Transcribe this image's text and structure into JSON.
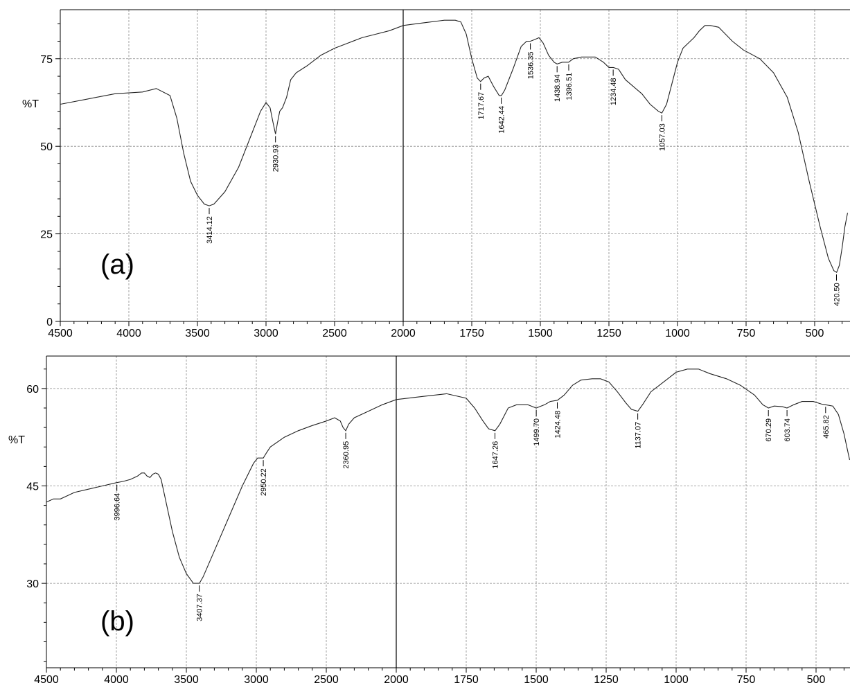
{
  "chart_data": [
    {
      "type": "line",
      "panel_label": "(a)",
      "ylabel": "%T",
      "xlim": [
        4500,
        400
      ],
      "ylim": [
        0,
        89
      ],
      "x_ticks": [
        4500,
        4000,
        3500,
        3000,
        2500,
        2000,
        1750,
        1500,
        1250,
        1000,
        750,
        500
      ],
      "y_ticks": [
        0,
        25,
        50,
        75
      ],
      "grid": true,
      "scale_break_at": 2000,
      "series": [
        {
          "points": [
            [
              4500,
              62
            ],
            [
              4300,
              63.5
            ],
            [
              4100,
              65
            ],
            [
              3900,
              65.5
            ],
            [
              3800,
              66.5
            ],
            [
              3700,
              64.5
            ],
            [
              3650,
              58
            ],
            [
              3600,
              48
            ],
            [
              3550,
              40
            ],
            [
              3500,
              36
            ],
            [
              3450,
              33.5
            ],
            [
              3414,
              33
            ],
            [
              3380,
              33.5
            ],
            [
              3300,
              37
            ],
            [
              3200,
              44
            ],
            [
              3100,
              54
            ],
            [
              3040,
              60
            ],
            [
              3000,
              62.5
            ],
            [
              2970,
              61
            ],
            [
              2950,
              57
            ],
            [
              2931,
              53.5
            ],
            [
              2915,
              57
            ],
            [
              2900,
              60
            ],
            [
              2880,
              61
            ],
            [
              2850,
              64
            ],
            [
              2820,
              69
            ],
            [
              2780,
              71
            ],
            [
              2700,
              73
            ],
            [
              2600,
              76
            ],
            [
              2500,
              78
            ],
            [
              2400,
              79.5
            ],
            [
              2300,
              81
            ],
            [
              2200,
              82
            ],
            [
              2100,
              83
            ],
            [
              2000,
              84.5
            ],
            [
              1950,
              85
            ],
            [
              1900,
              85.5
            ],
            [
              1850,
              86
            ],
            [
              1810,
              86
            ],
            [
              1790,
              85.5
            ],
            [
              1770,
              82
            ],
            [
              1750,
              75
            ],
            [
              1730,
              69.5
            ],
            [
              1718,
              68.5
            ],
            [
              1705,
              69.5
            ],
            [
              1690,
              70
            ],
            [
              1670,
              67
            ],
            [
              1650,
              64.5
            ],
            [
              1642,
              64.5
            ],
            [
              1630,
              66
            ],
            [
              1600,
              72
            ],
            [
              1570,
              78.5
            ],
            [
              1550,
              80
            ],
            [
              1536,
              80
            ],
            [
              1520,
              80.5
            ],
            [
              1505,
              81
            ],
            [
              1490,
              79.5
            ],
            [
              1470,
              76
            ],
            [
              1450,
              74
            ],
            [
              1439,
              73.5
            ],
            [
              1420,
              74
            ],
            [
              1397,
              74
            ],
            [
              1380,
              75
            ],
            [
              1350,
              75.5
            ],
            [
              1300,
              75.5
            ],
            [
              1270,
              74
            ],
            [
              1250,
              72.5
            ],
            [
              1234,
              72.5
            ],
            [
              1215,
              72
            ],
            [
              1190,
              69
            ],
            [
              1160,
              67
            ],
            [
              1130,
              65
            ],
            [
              1100,
              62
            ],
            [
              1070,
              60
            ],
            [
              1057,
              59.5
            ],
            [
              1040,
              62
            ],
            [
              1020,
              68
            ],
            [
              1000,
              74
            ],
            [
              980,
              78
            ],
            [
              960,
              79.5
            ],
            [
              940,
              81
            ],
            [
              920,
              83
            ],
            [
              900,
              84.5
            ],
            [
              880,
              84.5
            ],
            [
              850,
              84
            ],
            [
              800,
              80
            ],
            [
              760,
              77.5
            ],
            [
              700,
              75
            ],
            [
              650,
              71
            ],
            [
              600,
              64
            ],
            [
              560,
              54
            ],
            [
              520,
              40
            ],
            [
              480,
              27
            ],
            [
              450,
              18
            ],
            [
              430,
              14.5
            ],
            [
              420,
              14
            ],
            [
              410,
              16
            ],
            [
              400,
              21
            ],
            [
              390,
              27
            ],
            [
              380,
              31
            ]
          ]
        }
      ],
      "peaks": [
        {
          "x": 3414.12,
          "y": 33,
          "label": "3414.12"
        },
        {
          "x": 2930.93,
          "y": 53.5,
          "label": "2930.93"
        },
        {
          "x": 1717.67,
          "y": 68.5,
          "label": "1717.67"
        },
        {
          "x": 1642.44,
          "y": 64.5,
          "label": "1642.44"
        },
        {
          "x": 1536.35,
          "y": 80,
          "label": "1536.35"
        },
        {
          "x": 1438.94,
          "y": 73.5,
          "label": "1438.94"
        },
        {
          "x": 1396.51,
          "y": 74,
          "label": "1396.51"
        },
        {
          "x": 1234.48,
          "y": 72.5,
          "label": "1234.48"
        },
        {
          "x": 1057.03,
          "y": 59.5,
          "label": "1057.03"
        },
        {
          "x": 420.5,
          "y": 14,
          "label": "420.50"
        }
      ]
    },
    {
      "type": "line",
      "panel_label": "(b)",
      "ylabel": "%T",
      "xlim": [
        4500,
        400
      ],
      "ylim": [
        17,
        65
      ],
      "x_ticks": [
        4500,
        4000,
        3500,
        3000,
        2500,
        2000,
        1750,
        1500,
        1250,
        1000,
        750,
        500
      ],
      "y_ticks": [
        30,
        45,
        60
      ],
      "grid": true,
      "scale_break_at": 2000,
      "series": [
        {
          "points": [
            [
              4500,
              42.5
            ],
            [
              4450,
              43
            ],
            [
              4400,
              43
            ],
            [
              4350,
              43.5
            ],
            [
              4300,
              44
            ],
            [
              4200,
              44.5
            ],
            [
              4100,
              45
            ],
            [
              4000,
              45.5
            ],
            [
              3950,
              45.7
            ],
            [
              3900,
              46
            ],
            [
              3850,
              46.5
            ],
            [
              3820,
              47
            ],
            [
              3800,
              47
            ],
            [
              3780,
              46.5
            ],
            [
              3760,
              46.3
            ],
            [
              3740,
              46.8
            ],
            [
              3720,
              47
            ],
            [
              3700,
              46.8
            ],
            [
              3680,
              46
            ],
            [
              3650,
              43
            ],
            [
              3600,
              38
            ],
            [
              3550,
              34
            ],
            [
              3500,
              31.5
            ],
            [
              3450,
              30
            ],
            [
              3407,
              30
            ],
            [
              3380,
              31
            ],
            [
              3300,
              35
            ],
            [
              3200,
              40
            ],
            [
              3100,
              45
            ],
            [
              3020,
              48.5
            ],
            [
              2990,
              49.3
            ],
            [
              2950,
              49.3
            ],
            [
              2930,
              50
            ],
            [
              2900,
              51
            ],
            [
              2800,
              52.5
            ],
            [
              2700,
              53.5
            ],
            [
              2600,
              54.3
            ],
            [
              2500,
              55
            ],
            [
              2440,
              55.5
            ],
            [
              2400,
              55
            ],
            [
              2380,
              54
            ],
            [
              2361,
              53.5
            ],
            [
              2340,
              54.5
            ],
            [
              2300,
              55.5
            ],
            [
              2200,
              56.5
            ],
            [
              2100,
              57.5
            ],
            [
              2000,
              58.3
            ],
            [
              1900,
              58.8
            ],
            [
              1820,
              59.2
            ],
            [
              1750,
              58.5
            ],
            [
              1720,
              57
            ],
            [
              1690,
              55
            ],
            [
              1670,
              53.8
            ],
            [
              1647,
              53.5
            ],
            [
              1630,
              54.5
            ],
            [
              1600,
              57
            ],
            [
              1570,
              57.5
            ],
            [
              1530,
              57.5
            ],
            [
              1500,
              57
            ],
            [
              1470,
              57.5
            ],
            [
              1450,
              58
            ],
            [
              1424,
              58.2
            ],
            [
              1400,
              59
            ],
            [
              1370,
              60.5
            ],
            [
              1340,
              61.3
            ],
            [
              1300,
              61.5
            ],
            [
              1270,
              61.5
            ],
            [
              1240,
              61
            ],
            [
              1210,
              59.5
            ],
            [
              1180,
              57.8
            ],
            [
              1160,
              56.8
            ],
            [
              1137,
              56.5
            ],
            [
              1120,
              57.5
            ],
            [
              1090,
              59.5
            ],
            [
              1060,
              60.5
            ],
            [
              1030,
              61.5
            ],
            [
              1000,
              62.5
            ],
            [
              960,
              63
            ],
            [
              920,
              63
            ],
            [
              880,
              62.3
            ],
            [
              820,
              61.5
            ],
            [
              770,
              60.5
            ],
            [
              720,
              59
            ],
            [
              690,
              57.5
            ],
            [
              670,
              57
            ],
            [
              650,
              57.3
            ],
            [
              620,
              57.2
            ],
            [
              604,
              57.0
            ],
            [
              580,
              57.5
            ],
            [
              550,
              58
            ],
            [
              510,
              58
            ],
            [
              480,
              57.6
            ],
            [
              466,
              57.5
            ],
            [
              440,
              57.3
            ],
            [
              420,
              56
            ],
            [
              400,
              53
            ],
            [
              390,
              51
            ],
            [
              380,
              49
            ]
          ]
        }
      ],
      "peaks": [
        {
          "x": 3996.64,
          "y": 45.5,
          "label": "3996.64"
        },
        {
          "x": 3407.37,
          "y": 30,
          "label": "3407.37"
        },
        {
          "x": 2950.22,
          "y": 49.3,
          "label": "2950.22"
        },
        {
          "x": 2360.95,
          "y": 53.5,
          "label": "2360.95"
        },
        {
          "x": 1647.26,
          "y": 53.5,
          "label": "1647.26"
        },
        {
          "x": 1499.7,
          "y": 57,
          "label": "1499.70"
        },
        {
          "x": 1424.48,
          "y": 58.2,
          "label": "1424.48"
        },
        {
          "x": 1137.07,
          "y": 56.5,
          "label": "1137.07"
        },
        {
          "x": 670.29,
          "y": 57,
          "label": "670.29"
        },
        {
          "x": 603.74,
          "y": 57.0,
          "label": "603.74"
        },
        {
          "x": 465.82,
          "y": 57.5,
          "label": "465.82"
        }
      ]
    }
  ]
}
